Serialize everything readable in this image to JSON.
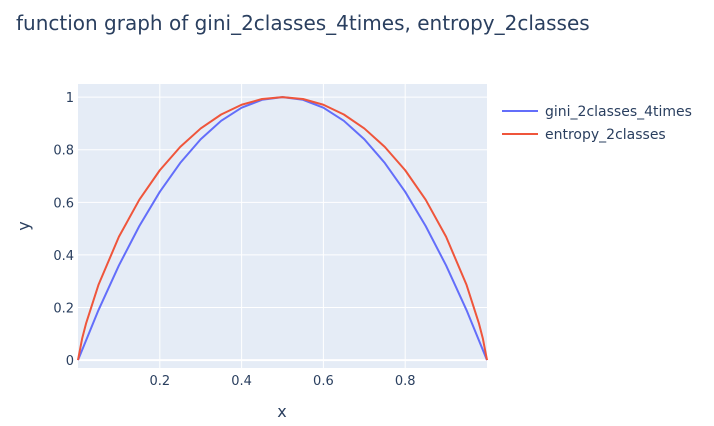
{
  "chart_data": {
    "type": "line",
    "title": "function graph of gini_2classes_4times, entropy_2classes",
    "xlabel": "x",
    "ylabel": "y",
    "xlim": [
      0.0,
      1.0
    ],
    "ylim": [
      -0.03,
      1.05
    ],
    "xticks": [
      0.2,
      0.4,
      0.6,
      0.8
    ],
    "xtick_labels": [
      "0.2",
      "0.4",
      "0.6",
      "0.8"
    ],
    "yticks": [
      0,
      0.2,
      0.4,
      0.6,
      0.8,
      1
    ],
    "ytick_labels": [
      "0",
      "0.2",
      "0.4",
      "0.6",
      "0.8",
      "1"
    ],
    "grid": true,
    "legend_position": "right",
    "series": [
      {
        "name": "gini_2classes_4times",
        "color": "#636efa",
        "x": [
          0.0,
          0.05,
          0.1,
          0.15,
          0.2,
          0.25,
          0.3,
          0.35,
          0.4,
          0.45,
          0.5,
          0.55,
          0.6,
          0.65,
          0.7,
          0.75,
          0.8,
          0.85,
          0.9,
          0.95,
          1.0
        ],
        "y": [
          0.0,
          0.19,
          0.36,
          0.51,
          0.64,
          0.75,
          0.84,
          0.91,
          0.96,
          0.99,
          1.0,
          0.99,
          0.96,
          0.91,
          0.84,
          0.75,
          0.64,
          0.51,
          0.36,
          0.19,
          0.0
        ]
      },
      {
        "name": "entropy_2classes",
        "color": "#ef553b",
        "x": [
          0.0,
          0.01,
          0.02,
          0.05,
          0.1,
          0.15,
          0.2,
          0.25,
          0.3,
          0.35,
          0.4,
          0.45,
          0.5,
          0.55,
          0.6,
          0.65,
          0.7,
          0.75,
          0.8,
          0.85,
          0.9,
          0.95,
          0.98,
          0.99,
          1.0
        ],
        "y": [
          0.0,
          0.081,
          0.141,
          0.286,
          0.469,
          0.61,
          0.722,
          0.811,
          0.881,
          0.934,
          0.971,
          0.993,
          1.0,
          0.993,
          0.971,
          0.934,
          0.881,
          0.811,
          0.722,
          0.61,
          0.469,
          0.286,
          0.141,
          0.081,
          0.0
        ]
      }
    ]
  }
}
